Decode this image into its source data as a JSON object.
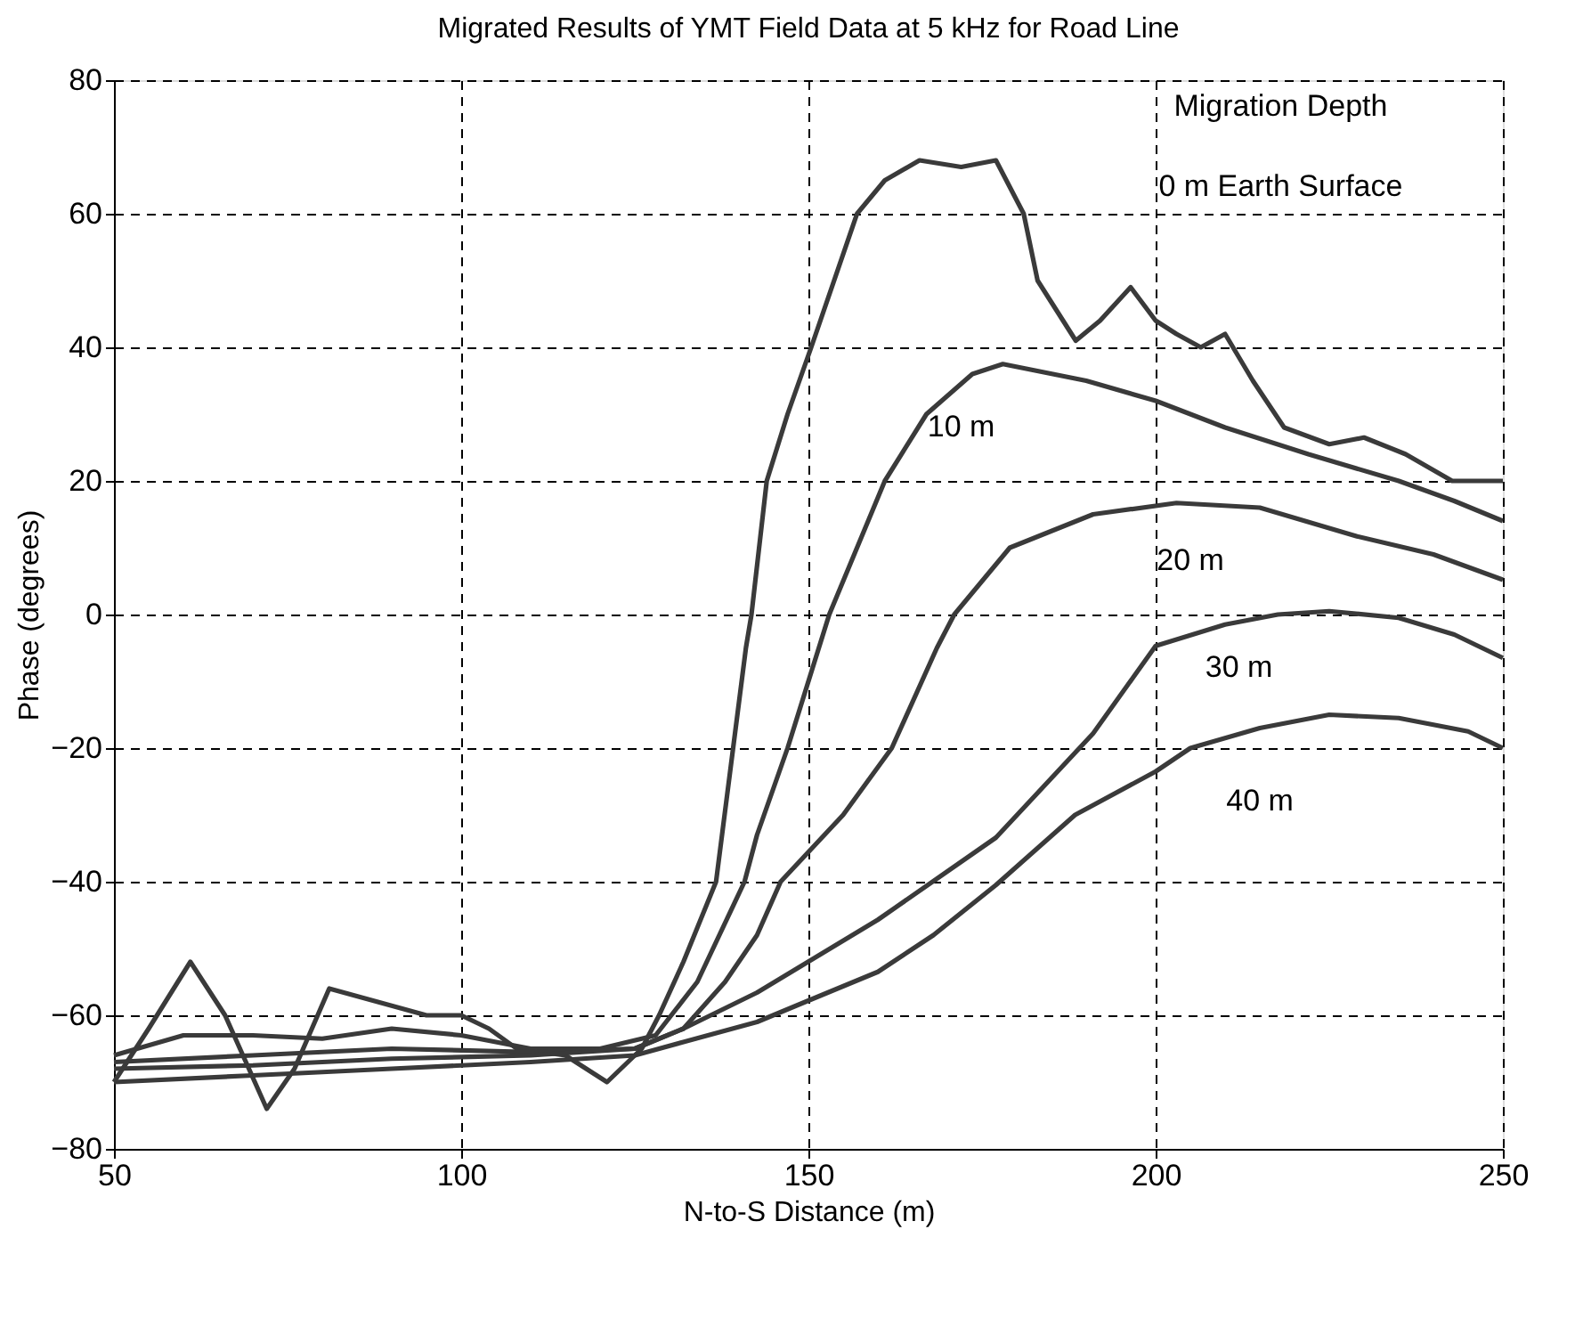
{
  "chart_data": {
    "type": "line",
    "title": "Migrated Results of YMT Field Data at 5 kHz for Road Line",
    "xlabel": "N-to-S Distance (m)",
    "ylabel": "Phase (degrees)",
    "legend_title": "Migration Depth",
    "xlim": [
      50,
      250
    ],
    "xticks": [
      50,
      100,
      150,
      200,
      250
    ],
    "ylim": [
      -80,
      80
    ],
    "yticks": [
      -80,
      -60,
      -40,
      -20,
      0,
      20,
      40,
      60,
      80
    ],
    "grid": true,
    "line_style": "solid",
    "marker": "none",
    "series": [
      {
        "name": "0 m Earth Surface",
        "color": "#3a3a3a",
        "x": [
          50,
          55,
          61,
          66,
          72,
          76,
          81,
          88,
          95,
          100,
          104,
          108,
          115,
          121,
          126,
          128.5,
          132,
          136.7,
          141,
          141.8,
          144,
          147,
          150.4,
          157,
          161,
          166,
          172,
          177,
          181,
          183,
          188.5,
          192,
          196.4,
          200,
          203,
          206.5,
          210,
          214,
          218.5,
          225,
          230,
          236,
          242.7,
          250
        ],
        "values": [
          -70,
          -62,
          -52,
          -60,
          -74,
          -68,
          -56,
          -58,
          -60,
          -60,
          -62,
          -65,
          -66,
          -70,
          -65,
          -60,
          -52,
          -40,
          -5,
          0,
          20,
          30,
          40,
          60,
          65,
          68,
          67,
          68,
          60,
          50,
          41,
          44,
          49,
          44,
          42,
          40,
          42,
          35,
          28,
          25.5,
          26.5,
          24,
          20,
          20
        ]
      },
      {
        "name": "10 m",
        "color": "#3a3a3a",
        "x": [
          50,
          60,
          70,
          80,
          90,
          100,
          110,
          120,
          128,
          134,
          140.8,
          142.6,
          147,
          153,
          161,
          167,
          173.6,
          178,
          190,
          200,
          210,
          222,
          235,
          243,
          250
        ],
        "values": [
          -66,
          -63,
          -63,
          -63.5,
          -62,
          -63,
          -65,
          -65,
          -63,
          -55,
          -40,
          -33,
          -20,
          0,
          20,
          30,
          36,
          37.5,
          35,
          32,
          28,
          24,
          20,
          17,
          14
        ]
      },
      {
        "name": "20 m",
        "color": "#3a3a3a",
        "x": [
          50,
          70,
          90,
          110,
          125,
          132,
          138,
          142.6,
          146,
          155,
          162,
          168.5,
          171,
          179,
          191,
          203,
          215,
          229,
          240,
          250
        ],
        "values": [
          -67,
          -66,
          -65,
          -65.5,
          -65,
          -62,
          -55,
          -48,
          -40,
          -30,
          -20,
          -5,
          0,
          10,
          15,
          16.7,
          16,
          11.7,
          9,
          5.2
        ]
      },
      {
        "name": "30 m",
        "color": "#3a3a3a",
        "x": [
          50,
          70,
          90,
          110,
          125,
          132,
          142.6,
          160,
          177,
          191,
          200,
          210,
          217.6,
          225,
          235,
          243,
          250
        ],
        "values": [
          -68,
          -67.5,
          -66.5,
          -66,
          -65,
          -62,
          -56.6,
          -45.7,
          -33.4,
          -17.8,
          -4.7,
          -1.5,
          0,
          0.5,
          -0.5,
          -3,
          -6.5
        ]
      },
      {
        "name": "40 m",
        "color": "#3a3a3a",
        "x": [
          50,
          70,
          90,
          110,
          125,
          132,
          142.6,
          150,
          160,
          168,
          177,
          188.4,
          200,
          205,
          215,
          225,
          235,
          245,
          250
        ],
        "values": [
          -70,
          -69,
          -68,
          -67,
          -66,
          -64,
          -61,
          -57.8,
          -53.5,
          -48,
          -40.5,
          -30,
          -23.5,
          -20,
          -17,
          -15,
          -15.5,
          -17.5,
          -20
        ]
      }
    ]
  }
}
